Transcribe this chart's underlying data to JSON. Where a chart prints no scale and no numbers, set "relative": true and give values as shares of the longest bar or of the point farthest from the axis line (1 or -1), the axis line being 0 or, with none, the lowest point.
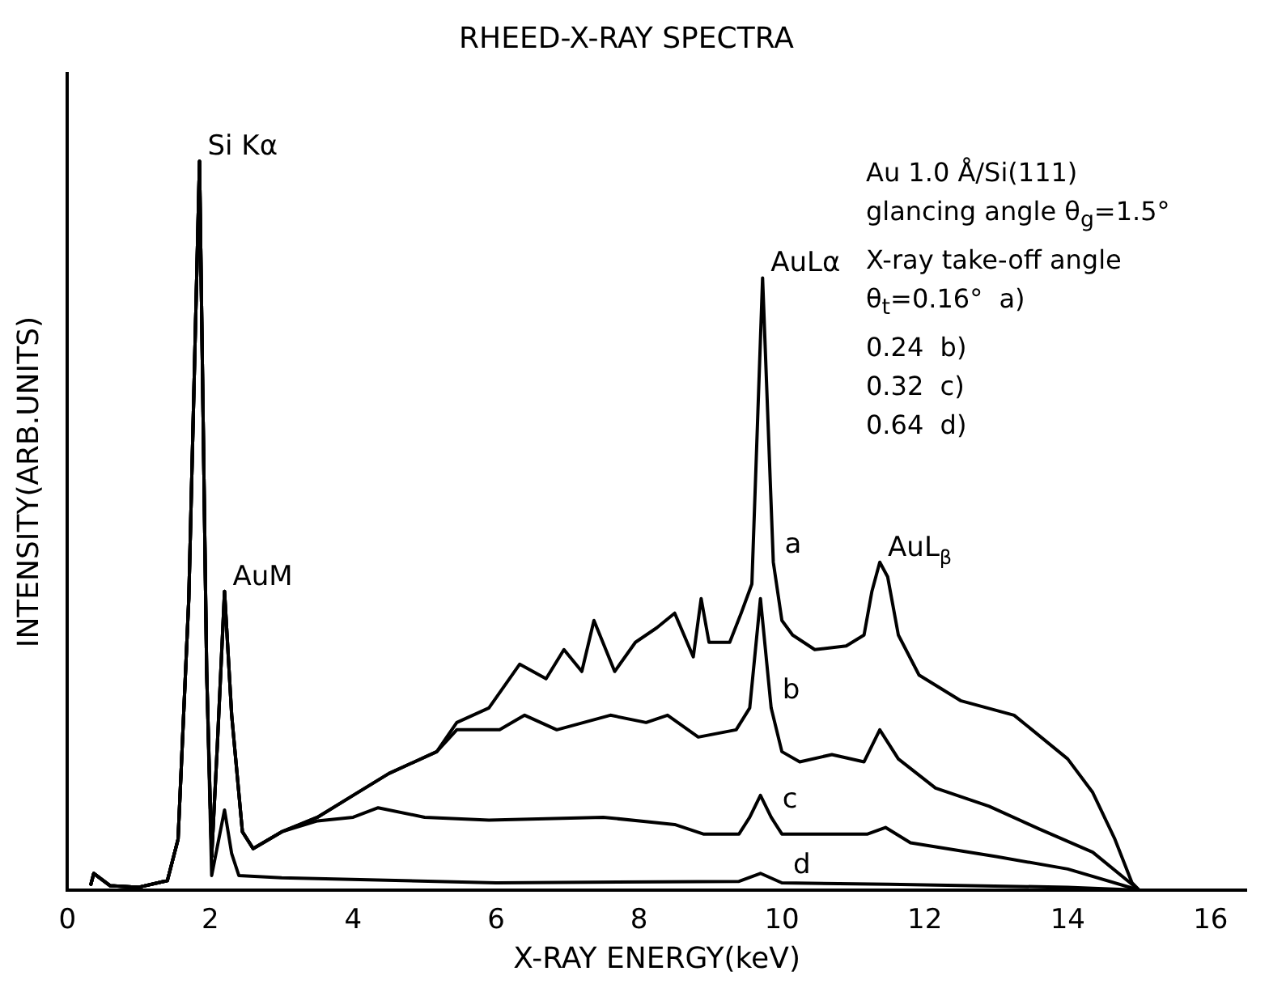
{
  "chart_data": {
    "type": "line",
    "title": "RHEED-X-RAY SPECTRA",
    "xlabel": "X-RAY ENERGY(keV)",
    "ylabel": "INTENSITY(ARB.UNITS)",
    "relative": true,
    "xlim": [
      0,
      16.5
    ],
    "xticks": [
      0,
      2,
      4,
      6,
      8,
      10,
      12,
      14,
      16
    ],
    "grid": false,
    "legend": false,
    "marker": "none",
    "line_style": "solid",
    "annotations": [
      {
        "text": "Si Kα",
        "x": 1.85,
        "y": 1.0
      },
      {
        "text": "AuM",
        "x": 2.2,
        "y": 0.41
      },
      {
        "text": "AuLα",
        "x": 9.73,
        "y": 0.84
      },
      {
        "text": "AuL$_{β}$",
        "x": 11.37,
        "y": 0.45
      },
      "Au 1.0 Å/Si(111)",
      "glancing angle θ$_{g}$=1.5°",
      "X-ray take-off angle",
      "θ$_{t}$=0.16°  a)",
      "0.24  b)",
      "0.32  c)",
      "0.64  d)"
    ],
    "series": [
      {
        "name": "a",
        "color": "#000000",
        "x": [
          0.33,
          0.37,
          0.6,
          1.0,
          1.4,
          1.55,
          1.7,
          1.85,
          1.95,
          2.02,
          2.1,
          2.2,
          2.3,
          2.45,
          2.6,
          3.0,
          3.5,
          4.0,
          4.5,
          5.17,
          5.45,
          5.9,
          6.33,
          6.7,
          6.95,
          7.2,
          7.37,
          7.66,
          7.95,
          8.25,
          8.5,
          8.76,
          8.87,
          8.98,
          9.27,
          9.43,
          9.58,
          9.73,
          9.88,
          10.0,
          10.15,
          10.46,
          10.9,
          11.15,
          11.26,
          11.37,
          11.48,
          11.63,
          11.92,
          12.5,
          13.25,
          14.0,
          14.35,
          14.66,
          14.9,
          15.0
        ],
        "values": [
          0.008,
          0.023,
          0.006,
          0.004,
          0.013,
          0.07,
          0.4,
          1.0,
          0.3,
          0.046,
          0.2,
          0.41,
          0.24,
          0.08,
          0.057,
          0.08,
          0.1,
          0.13,
          0.16,
          0.19,
          0.23,
          0.25,
          0.31,
          0.29,
          0.33,
          0.3,
          0.37,
          0.3,
          0.34,
          0.36,
          0.38,
          0.32,
          0.4,
          0.34,
          0.34,
          0.38,
          0.42,
          0.84,
          0.45,
          0.37,
          0.35,
          0.33,
          0.335,
          0.35,
          0.41,
          0.45,
          0.43,
          0.35,
          0.295,
          0.26,
          0.24,
          0.18,
          0.134,
          0.07,
          0.01,
          0
        ]
      },
      {
        "name": "b",
        "color": "#000000",
        "x": [
          0.33,
          0.37,
          0.6,
          1.0,
          1.4,
          1.55,
          1.7,
          1.85,
          1.95,
          2.02,
          2.1,
          2.2,
          2.3,
          2.45,
          2.6,
          3.0,
          3.5,
          4.0,
          4.5,
          5.17,
          5.45,
          6.05,
          6.4,
          6.85,
          7.6,
          8.1,
          8.4,
          8.83,
          9.36,
          9.55,
          9.7,
          9.85,
          10.0,
          10.25,
          10.7,
          11.15,
          11.37,
          11.63,
          12.15,
          12.9,
          13.6,
          14.35,
          15.0
        ],
        "values": [
          0.008,
          0.023,
          0.006,
          0.004,
          0.013,
          0.07,
          0.4,
          1.0,
          0.3,
          0.046,
          0.2,
          0.41,
          0.24,
          0.08,
          0.057,
          0.08,
          0.1,
          0.13,
          0.16,
          0.19,
          0.22,
          0.22,
          0.24,
          0.22,
          0.24,
          0.23,
          0.24,
          0.21,
          0.22,
          0.25,
          0.4,
          0.25,
          0.19,
          0.176,
          0.186,
          0.176,
          0.22,
          0.18,
          0.14,
          0.115,
          0.084,
          0.052,
          0
        ]
      },
      {
        "name": "c",
        "color": "#000000",
        "x": [
          0.33,
          0.37,
          0.6,
          1.0,
          1.4,
          1.55,
          1.7,
          1.85,
          1.95,
          2.02,
          2.1,
          2.2,
          2.3,
          2.45,
          2.6,
          3.0,
          3.5,
          4.0,
          4.35,
          5.0,
          5.9,
          7.5,
          8.5,
          8.9,
          9.4,
          9.55,
          9.7,
          9.85,
          10.0,
          10.6,
          11.2,
          11.45,
          11.8,
          13.0,
          14.0,
          15.0
        ],
        "values": [
          0.008,
          0.023,
          0.006,
          0.004,
          0.013,
          0.07,
          0.4,
          1.0,
          0.3,
          0.046,
          0.2,
          0.41,
          0.24,
          0.08,
          0.057,
          0.08,
          0.095,
          0.1,
          0.113,
          0.1,
          0.096,
          0.1,
          0.09,
          0.077,
          0.077,
          0.1,
          0.13,
          0.1,
          0.077,
          0.077,
          0.077,
          0.086,
          0.065,
          0.046,
          0.029,
          0
        ]
      },
      {
        "name": "d",
        "color": "#000000",
        "x": [
          0.33,
          0.37,
          0.6,
          1.0,
          1.4,
          1.55,
          1.7,
          1.85,
          1.95,
          2.02,
          2.1,
          2.2,
          2.3,
          2.4,
          3.0,
          6.0,
          9.4,
          9.7,
          10.0,
          11.5,
          14.0,
          15.0
        ],
        "values": [
          0.008,
          0.023,
          0.006,
          0.004,
          0.013,
          0.07,
          0.4,
          1.0,
          0.3,
          0.02,
          0.06,
          0.11,
          0.05,
          0.02,
          0.017,
          0.01,
          0.012,
          0.023,
          0.01,
          0.008,
          0.004,
          0
        ]
      }
    ]
  }
}
